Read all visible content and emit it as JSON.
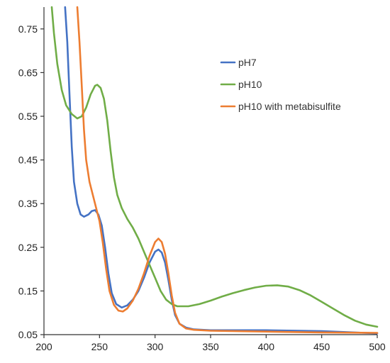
{
  "chart_data": {
    "type": "line",
    "title": "",
    "xlabel": "",
    "ylabel": "",
    "xlim": [
      200,
      500
    ],
    "ylim": [
      0.05,
      0.8
    ],
    "x_ticks": [
      200,
      250,
      300,
      350,
      400,
      450,
      500
    ],
    "y_ticks": [
      0.05,
      0.15,
      0.25,
      0.35,
      0.45,
      0.55,
      0.65,
      0.75
    ],
    "x_tick_labels": [
      "200",
      "250",
      "300",
      "350",
      "400",
      "450",
      "500"
    ],
    "y_tick_labels": [
      "0.05",
      "0.15",
      "0.25",
      "0.35",
      "0.45",
      "0.55",
      "0.65",
      "0.75"
    ],
    "grid": false,
    "legend": "top-right",
    "series": [
      {
        "name": "pH7",
        "color": "#4472C4",
        "points": [
          [
            219,
            0.8
          ],
          [
            221,
            0.72
          ],
          [
            223,
            0.6
          ],
          [
            225,
            0.48
          ],
          [
            227,
            0.4
          ],
          [
            230,
            0.35
          ],
          [
            233,
            0.325
          ],
          [
            236,
            0.32
          ],
          [
            240,
            0.325
          ],
          [
            243,
            0.333
          ],
          [
            246,
            0.335
          ],
          [
            249,
            0.325
          ],
          [
            252,
            0.3
          ],
          [
            255,
            0.25
          ],
          [
            258,
            0.19
          ],
          [
            261,
            0.145
          ],
          [
            265,
            0.12
          ],
          [
            270,
            0.112
          ],
          [
            275,
            0.117
          ],
          [
            280,
            0.13
          ],
          [
            285,
            0.15
          ],
          [
            290,
            0.18
          ],
          [
            295,
            0.215
          ],
          [
            300,
            0.24
          ],
          [
            303,
            0.245
          ],
          [
            306,
            0.238
          ],
          [
            309,
            0.215
          ],
          [
            312,
            0.175
          ],
          [
            315,
            0.13
          ],
          [
            318,
            0.095
          ],
          [
            322,
            0.075
          ],
          [
            328,
            0.066
          ],
          [
            335,
            0.062
          ],
          [
            350,
            0.06
          ],
          [
            400,
            0.06
          ],
          [
            450,
            0.058
          ],
          [
            500,
            0.053
          ]
        ]
      },
      {
        "name": "pH10",
        "color": "#70AD47",
        "points": [
          [
            207,
            0.8
          ],
          [
            209,
            0.74
          ],
          [
            212,
            0.67
          ],
          [
            216,
            0.61
          ],
          [
            220,
            0.575
          ],
          [
            225,
            0.555
          ],
          [
            230,
            0.545
          ],
          [
            234,
            0.55
          ],
          [
            238,
            0.57
          ],
          [
            242,
            0.6
          ],
          [
            246,
            0.62
          ],
          [
            248,
            0.622
          ],
          [
            251,
            0.615
          ],
          [
            254,
            0.59
          ],
          [
            257,
            0.54
          ],
          [
            260,
            0.47
          ],
          [
            263,
            0.41
          ],
          [
            266,
            0.37
          ],
          [
            270,
            0.34
          ],
          [
            275,
            0.315
          ],
          [
            280,
            0.295
          ],
          [
            285,
            0.27
          ],
          [
            290,
            0.24
          ],
          [
            295,
            0.21
          ],
          [
            300,
            0.18
          ],
          [
            305,
            0.15
          ],
          [
            310,
            0.13
          ],
          [
            315,
            0.12
          ],
          [
            320,
            0.115
          ],
          [
            330,
            0.115
          ],
          [
            340,
            0.12
          ],
          [
            350,
            0.128
          ],
          [
            360,
            0.137
          ],
          [
            370,
            0.145
          ],
          [
            380,
            0.152
          ],
          [
            390,
            0.158
          ],
          [
            400,
            0.162
          ],
          [
            410,
            0.163
          ],
          [
            420,
            0.16
          ],
          [
            430,
            0.152
          ],
          [
            440,
            0.14
          ],
          [
            450,
            0.125
          ],
          [
            460,
            0.11
          ],
          [
            470,
            0.095
          ],
          [
            480,
            0.082
          ],
          [
            490,
            0.073
          ],
          [
            500,
            0.068
          ]
        ]
      },
      {
        "name": "pH10 with metabisulfite",
        "color": "#ED7D31",
        "points": [
          [
            230,
            0.8
          ],
          [
            232,
            0.72
          ],
          [
            234,
            0.62
          ],
          [
            236,
            0.52
          ],
          [
            238,
            0.45
          ],
          [
            241,
            0.4
          ],
          [
            244,
            0.37
          ],
          [
            247,
            0.34
          ],
          [
            250,
            0.31
          ],
          [
            253,
            0.26
          ],
          [
            256,
            0.2
          ],
          [
            259,
            0.15
          ],
          [
            263,
            0.118
          ],
          [
            267,
            0.105
          ],
          [
            271,
            0.103
          ],
          [
            275,
            0.11
          ],
          [
            280,
            0.128
          ],
          [
            285,
            0.155
          ],
          [
            290,
            0.19
          ],
          [
            295,
            0.23
          ],
          [
            300,
            0.262
          ],
          [
            303,
            0.27
          ],
          [
            306,
            0.262
          ],
          [
            309,
            0.235
          ],
          [
            312,
            0.19
          ],
          [
            315,
            0.14
          ],
          [
            318,
            0.1
          ],
          [
            322,
            0.075
          ],
          [
            328,
            0.064
          ],
          [
            335,
            0.061
          ],
          [
            350,
            0.059
          ],
          [
            400,
            0.057
          ],
          [
            450,
            0.055
          ],
          [
            500,
            0.054
          ]
        ]
      }
    ]
  }
}
